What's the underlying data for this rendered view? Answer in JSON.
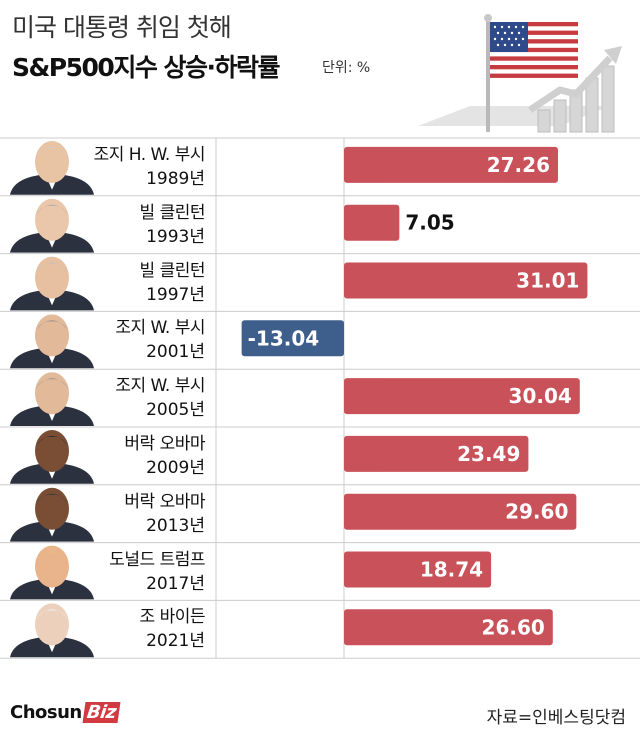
{
  "header": {
    "title_line1": "미국 대통령 취임 첫해",
    "title_line2": "S&P500지수 상승·하락률",
    "unit": "단위: %"
  },
  "footer": {
    "logo_text": "Chosun",
    "logo_badge": "Biz",
    "source": "자료=인베스팅닷컴"
  },
  "colors": {
    "positive": "#c9525a",
    "negative": "#3e5f8c",
    "grid": "#cccccc"
  },
  "chart_data": {
    "type": "bar",
    "orientation": "horizontal",
    "categories": [
      {
        "name": "조지 H. W. 부시",
        "year": "1989년"
      },
      {
        "name": "빌 클린턴",
        "year": "1993년"
      },
      {
        "name": "빌 클린턴",
        "year": "1997년"
      },
      {
        "name": "조지 W. 부시",
        "year": "2001년"
      },
      {
        "name": "조지 W. 부시",
        "year": "2005년"
      },
      {
        "name": "버락 오바마",
        "year": "2009년"
      },
      {
        "name": "버락 오바마",
        "year": "2013년"
      },
      {
        "name": "도널드 트럼프",
        "year": "2017년"
      },
      {
        "name": "조 바이든",
        "year": "2021년"
      }
    ],
    "values": [
      27.26,
      7.05,
      31.01,
      -13.04,
      30.04,
      23.49,
      29.6,
      18.74,
      26.6
    ],
    "value_labels": [
      "27.26",
      "7.05",
      "31.01",
      "-13.04",
      "30.04",
      "23.49",
      "29.60",
      "18.74",
      "26.60"
    ],
    "xlim": [
      -15,
      32
    ]
  }
}
